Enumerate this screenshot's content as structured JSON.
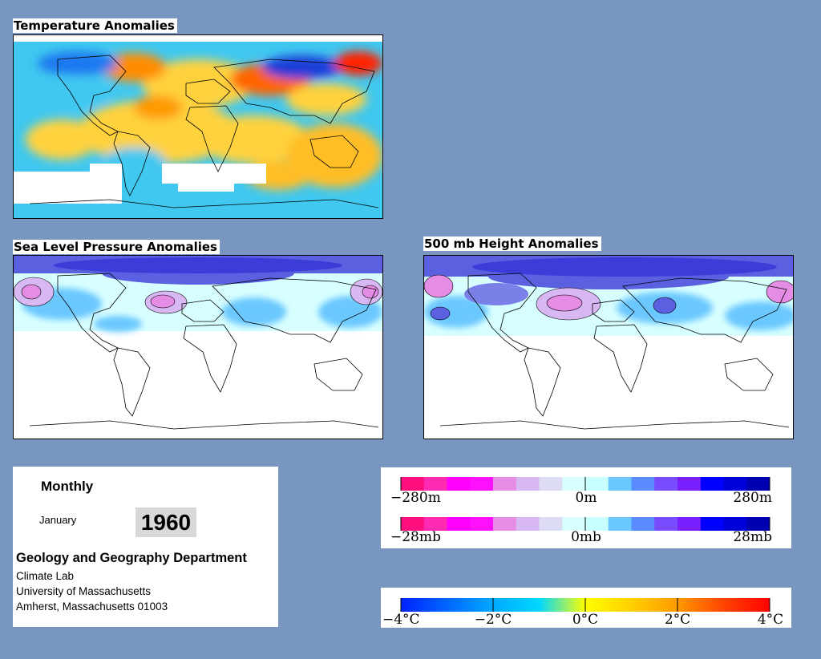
{
  "temperature_map": {
    "title": "Temperature Anomalies"
  },
  "slp_map": {
    "title": "Sea Level Pressure Anomalies"
  },
  "height_map": {
    "title": "500 mb Height Anomalies"
  },
  "info": {
    "frequency": "Monthly",
    "month": "January",
    "year": "1960",
    "department": "Geology and Geography Department",
    "lab": "Climate Lab",
    "university": "University of Massachusetts",
    "address": "Amherst, Massachusetts 01003"
  },
  "legend_height": {
    "labels": [
      "−280m",
      "0m",
      "280m"
    ],
    "colors": [
      "#ff0f7e",
      "#ff2ab2",
      "#ff00ff",
      "#ff10ff",
      "#e58ce5",
      "#d8b8f2",
      "#dcdcf4",
      "#d8ffff",
      "#c8ffff",
      "#6ac8ff",
      "#5a8cff",
      "#7a4cff",
      "#7a20ff",
      "#0000ff",
      "#0000d8",
      "#0000b0"
    ]
  },
  "legend_pressure": {
    "labels": [
      "−28mb",
      "0mb",
      "28mb"
    ],
    "colors": [
      "#ff0f7e",
      "#ff2ab2",
      "#ff00ff",
      "#ff10ff",
      "#e58ce5",
      "#d8b8f2",
      "#dcdcf4",
      "#d8ffff",
      "#c8ffff",
      "#6ac8ff",
      "#5a8cff",
      "#7a4cff",
      "#7a20ff",
      "#0000ff",
      "#0000d8",
      "#0000b0"
    ]
  },
  "legend_temperature": {
    "labels": [
      "−4°C",
      "−2°C",
      "0°C",
      "2°C",
      "4°C"
    ],
    "colors": [
      "#0022ff",
      "#0066ff",
      "#00aaff",
      "#00d8ff",
      "#ffff00",
      "#ffd000",
      "#ff9a00",
      "#ff4400",
      "#ff0000"
    ]
  },
  "colors": {
    "background": "#7896c0",
    "warm": "#ff8c00",
    "cool": "#00bfff",
    "high": "#3c3cd8",
    "low": "#ff3ca0"
  }
}
